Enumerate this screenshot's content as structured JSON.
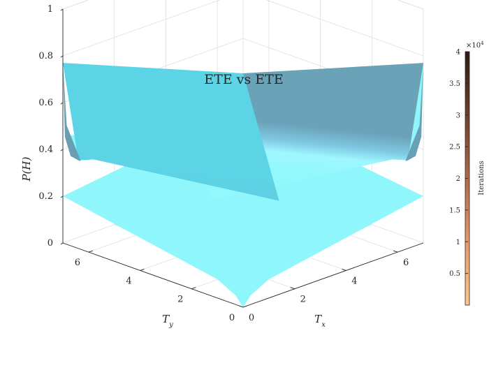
{
  "chart_data": {
    "type": "surface",
    "title": "ETE vs ETE",
    "xlabel": "T_x",
    "ylabel": "T_y",
    "zlabel": "P(H)",
    "x_ticks": [
      "0",
      "2",
      "4",
      "6"
    ],
    "y_ticks": [
      "0",
      "2",
      "4",
      "6"
    ],
    "z_ticks": [
      "0",
      "0.2",
      "0.4",
      "0.6",
      "0.8",
      "1"
    ],
    "xlim": [
      0,
      7
    ],
    "ylim": [
      0,
      7
    ],
    "zlim": [
      0,
      1
    ],
    "grid": true,
    "surface_color": "#8ff7fc",
    "surface_shadow_color": "#5c93aa",
    "edge_curves": {
      "x_max_edge": {
        "note_x": 7,
        "y": [
          0,
          0.1,
          0.3,
          0.6,
          1.2,
          2,
          3,
          4,
          5,
          6,
          7
        ],
        "z": [
          0.77,
          0.45,
          0.36,
          0.33,
          0.31,
          0.3,
          0.3,
          0.3,
          0.3,
          0.3,
          0.3
        ]
      },
      "y_max_edge": {
        "note_y": 7,
        "x": [
          0,
          0.1,
          0.3,
          0.6,
          1.2,
          2,
          3,
          4,
          5,
          6,
          7
        ],
        "z": [
          0.77,
          0.45,
          0.36,
          0.33,
          0.31,
          0.3,
          0.3,
          0.3,
          0.3,
          0.3,
          0.3
        ]
      },
      "x_axis_edge": {
        "y": 0,
        "x": [
          0,
          0.3,
          1,
          2,
          3,
          4,
          5,
          6,
          7
        ],
        "z": [
          0.0,
          0.04,
          0.08,
          0.1,
          0.12,
          0.14,
          0.16,
          0.18,
          0.2
        ]
      }
    },
    "vertical_line": {
      "x": 0,
      "y": 0,
      "z_range": [
        0,
        1
      ],
      "colors": [
        "#3b1f14",
        "#f7c37f"
      ]
    },
    "colorbar": {
      "label": "Iterations",
      "exponent_label": "×10",
      "exponent_power": "4",
      "ticks": [
        "0.5",
        "1",
        "1.5",
        "2",
        "2.5",
        "3",
        "3.5",
        "4"
      ],
      "tick_values": [
        0.5,
        1,
        1.5,
        2,
        2.5,
        3,
        3.5,
        4
      ],
      "range": [
        0,
        4
      ],
      "colors": [
        "#fdc78a",
        "#e69a6a",
        "#b06a48",
        "#6e412c",
        "#2a1a12"
      ]
    }
  }
}
